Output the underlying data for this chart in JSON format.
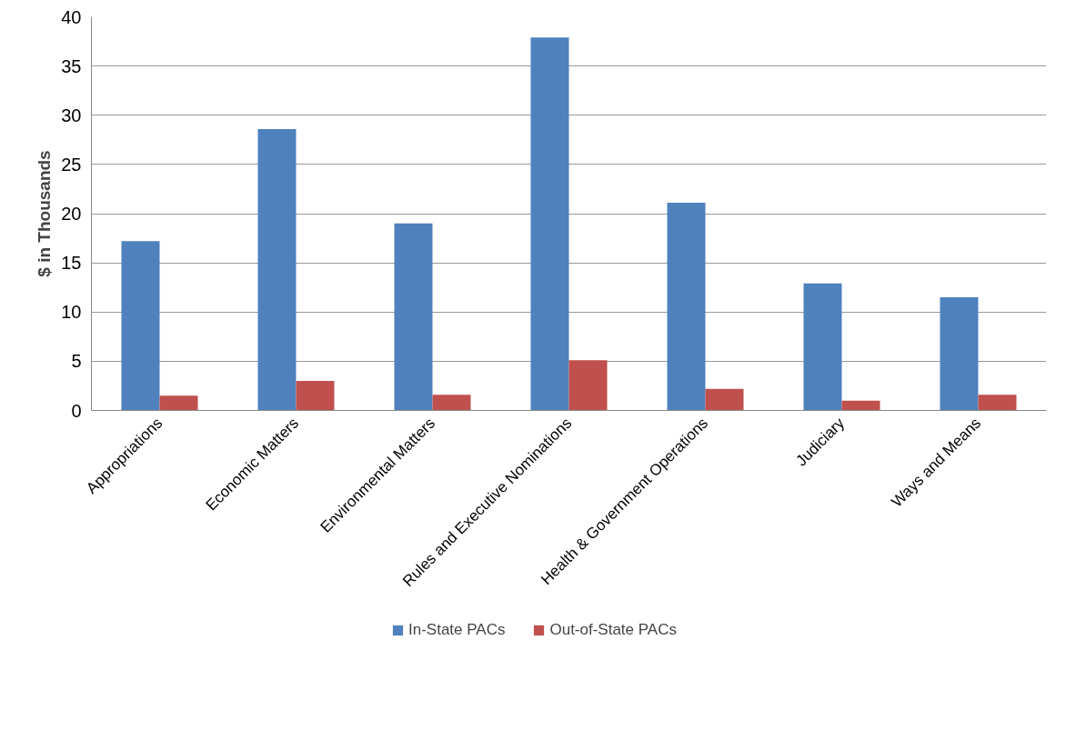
{
  "chart_data": {
    "type": "bar",
    "ylabel": "$ in Thousands",
    "categories": [
      "Appropriations",
      "Economic Matters",
      "Environmental Matters",
      "Rules and Executive Nominations",
      "Health & Government Operations",
      "Judiciary",
      "Ways and Means"
    ],
    "series": [
      {
        "name": "In-State PACs",
        "color": "#4f81bd",
        "values": [
          17.2,
          28.6,
          19.0,
          37.9,
          21.1,
          12.9,
          11.5
        ]
      },
      {
        "name": "Out-of-State PACs",
        "color": "#c0504d",
        "values": [
          1.5,
          3.0,
          1.6,
          5.1,
          2.2,
          1.0,
          1.6
        ]
      }
    ],
    "ylim": [
      0,
      40
    ],
    "yticks": [
      0,
      5,
      10,
      15,
      20,
      25,
      30,
      35,
      40
    ],
    "grid": "y",
    "legend": "bottom"
  }
}
